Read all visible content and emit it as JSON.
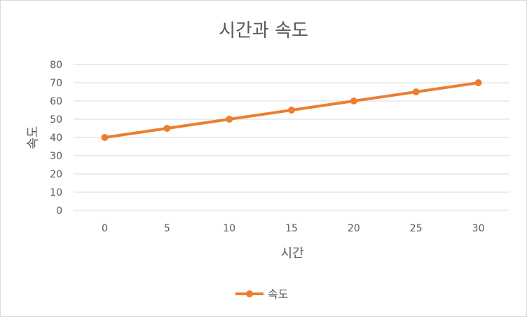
{
  "chart_data": {
    "type": "line",
    "title": "시간과 속도",
    "xlabel": "시간",
    "ylabel": "속도",
    "x": [
      0,
      5,
      10,
      15,
      20,
      25,
      30
    ],
    "x_ticks": [
      "0",
      "5",
      "10",
      "15",
      "20",
      "25",
      "30"
    ],
    "y_ticks": [
      "0",
      "10",
      "20",
      "30",
      "40",
      "50",
      "60",
      "70",
      "80"
    ],
    "ylim": [
      0,
      80
    ],
    "grid": true,
    "legend_position": "bottom",
    "series": [
      {
        "name": "속도",
        "values": [
          40,
          45,
          50,
          55,
          60,
          65,
          70
        ],
        "color": "#ED7D31"
      }
    ]
  }
}
